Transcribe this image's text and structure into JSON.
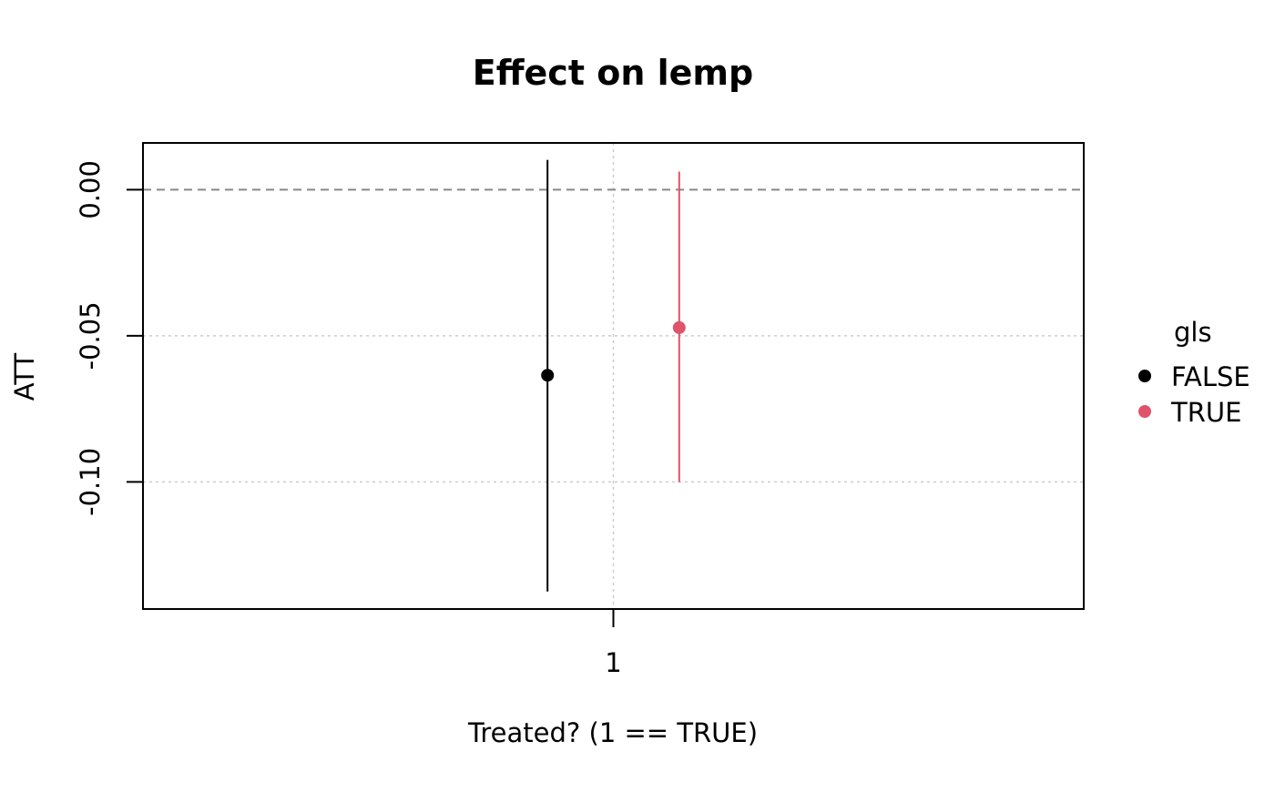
{
  "chart_data": {
    "type": "scatter",
    "title": "Effect on lemp",
    "xlabel": "Treated? (1 == TRUE)",
    "ylabel": "ATT",
    "x_ticks": [
      1
    ],
    "x_tick_labels": [
      "1"
    ],
    "y_ticks": [
      0.0,
      -0.05,
      -0.1
    ],
    "y_tick_labels": [
      "0.00",
      "-0.05",
      "-0.10"
    ],
    "ylim": [
      -0.1435,
      0.016
    ],
    "xlim": [
      0.5,
      1.5
    ],
    "grid": true,
    "reference_line": {
      "y": 0,
      "style": "dashed",
      "color": "#888888"
    },
    "legend": {
      "title": "gls",
      "placement": "right",
      "entries": [
        {
          "label": "FALSE",
          "color": "#000000"
        },
        {
          "label": "TRUE",
          "color": "#DF536B"
        }
      ]
    },
    "series": [
      {
        "name": "FALSE",
        "color": "#000000",
        "x": 1,
        "x_dodge": -0.07,
        "estimate": -0.0635,
        "conf_low": -0.1375,
        "conf_high": 0.0102
      },
      {
        "name": "TRUE",
        "color": "#DF536B",
        "x": 1,
        "x_dodge": 0.07,
        "estimate": -0.0472,
        "conf_low": -0.1001,
        "conf_high": 0.0062
      }
    ]
  }
}
